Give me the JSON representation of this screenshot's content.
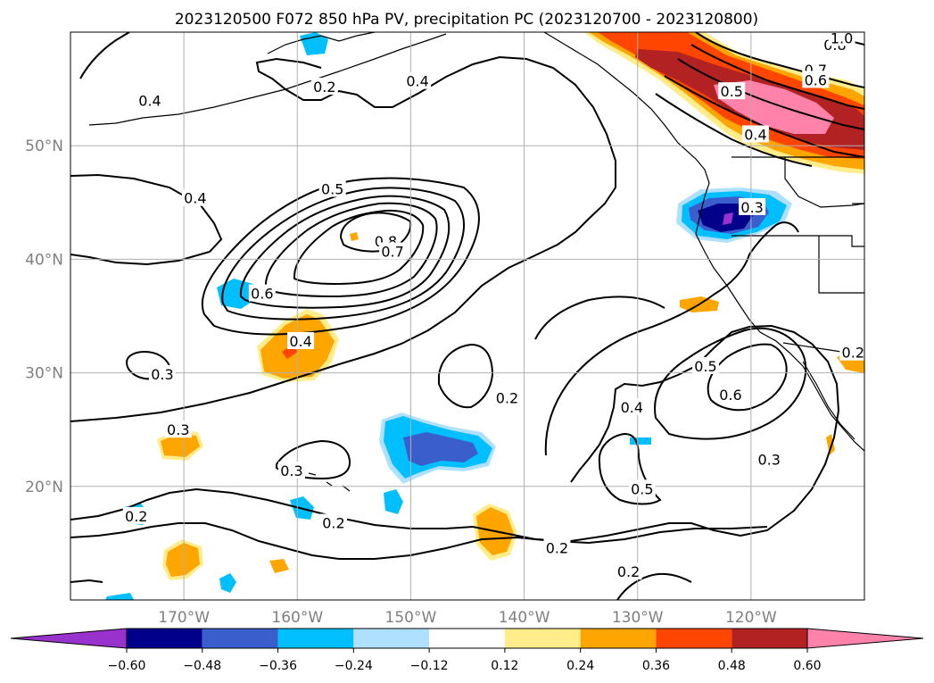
{
  "title": "2023120500 F072 850 hPa PV, precipitation PC (2023120700 - 2023120800)",
  "map": {
    "lon_range": [
      -180,
      -110
    ],
    "lat_range": [
      10,
      60
    ],
    "lat_ticks": [
      {
        "value": 50,
        "label": "50°N"
      },
      {
        "value": 40,
        "label": "40°N"
      },
      {
        "value": 30,
        "label": "30°N"
      },
      {
        "value": 20,
        "label": "20°N"
      }
    ],
    "lon_ticks": [
      {
        "value": -170,
        "label": "170°W"
      },
      {
        "value": -160,
        "label": "160°W"
      },
      {
        "value": -150,
        "label": "150°W"
      },
      {
        "value": -140,
        "label": "140°W"
      },
      {
        "value": -130,
        "label": "130°W"
      },
      {
        "value": -120,
        "label": "120°W"
      }
    ],
    "grid": true
  },
  "contour_labels": [
    {
      "text": "0.4",
      "lon": -149.4,
      "lat": 55.7
    },
    {
      "text": "0.2",
      "lon": -157.6,
      "lat": 55.2
    },
    {
      "text": "0.4",
      "lon": -173.0,
      "lat": 54.0
    },
    {
      "text": "0.4",
      "lon": -169.0,
      "lat": 45.4
    },
    {
      "text": "0.5",
      "lon": -156.9,
      "lat": 46.2
    },
    {
      "text": "0.8",
      "lon": -152.2,
      "lat": 41.6
    },
    {
      "text": "0.7",
      "lon": -151.6,
      "lat": 40.7
    },
    {
      "text": "0.6",
      "lon": -163.1,
      "lat": 37.0
    },
    {
      "text": "0.4",
      "lon": -159.7,
      "lat": 32.8
    },
    {
      "text": "0.3",
      "lon": -171.9,
      "lat": 29.9
    },
    {
      "text": "0.2",
      "lon": -141.5,
      "lat": 27.8
    },
    {
      "text": "0.3",
      "lon": -170.5,
      "lat": 25.0
    },
    {
      "text": "0.3",
      "lon": -160.5,
      "lat": 21.4
    },
    {
      "text": "0.2",
      "lon": -174.2,
      "lat": 17.4
    },
    {
      "text": "0.2",
      "lon": -156.8,
      "lat": 16.8
    },
    {
      "text": "0.2",
      "lon": -137.1,
      "lat": 14.6
    },
    {
      "text": "0.2",
      "lon": -130.8,
      "lat": 12.5
    },
    {
      "text": "0.4",
      "lon": -130.5,
      "lat": 27.0
    },
    {
      "text": "0.5",
      "lon": -129.6,
      "lat": 19.8
    },
    {
      "text": "0.5",
      "lon": -124.0,
      "lat": 30.6
    },
    {
      "text": "0.6",
      "lon": -121.8,
      "lat": 28.1
    },
    {
      "text": "0.3",
      "lon": -118.4,
      "lat": 22.4
    },
    {
      "text": "0.7",
      "lon": -114.3,
      "lat": 56.7
    },
    {
      "text": "0.8",
      "lon": -112.6,
      "lat": 58.9
    },
    {
      "text": "0.6",
      "lon": -114.3,
      "lat": 55.8
    },
    {
      "text": "0.5",
      "lon": -121.7,
      "lat": 54.8
    },
    {
      "text": "0.4",
      "lon": -119.6,
      "lat": 51.0
    },
    {
      "text": "0.3",
      "lon": -119.9,
      "lat": 44.6
    },
    {
      "text": "1.0",
      "lon": -112.0,
      "lat": 59.5
    },
    {
      "text": "0.2",
      "lon": -111.0,
      "lat": 31.8
    }
  ],
  "colorbar": {
    "colors": [
      "#9932cc",
      "#00008b",
      "#3a5fcd",
      "#00bfff",
      "#b0e0ff",
      "#ffffff",
      "#ffec8b",
      "#ffa500",
      "#ff4500",
      "#b22222",
      "#ff82ab"
    ],
    "tick_labels": [
      "−0.60",
      "−0.48",
      "−0.36",
      "−0.24",
      "−0.12",
      "0.12",
      "0.24",
      "0.36",
      "0.48",
      "0.60"
    ],
    "extend": "both"
  },
  "precip_colors": {
    "pos1": "#ffec8b",
    "pos2": "#ffa500",
    "pos3": "#ff4500",
    "pos4": "#b22222",
    "pos5": "#ff82ab",
    "neg1": "#b0e0ff",
    "neg2": "#00bfff",
    "neg3": "#3a5fcd",
    "neg4": "#00008b",
    "neg5": "#9932cc"
  }
}
